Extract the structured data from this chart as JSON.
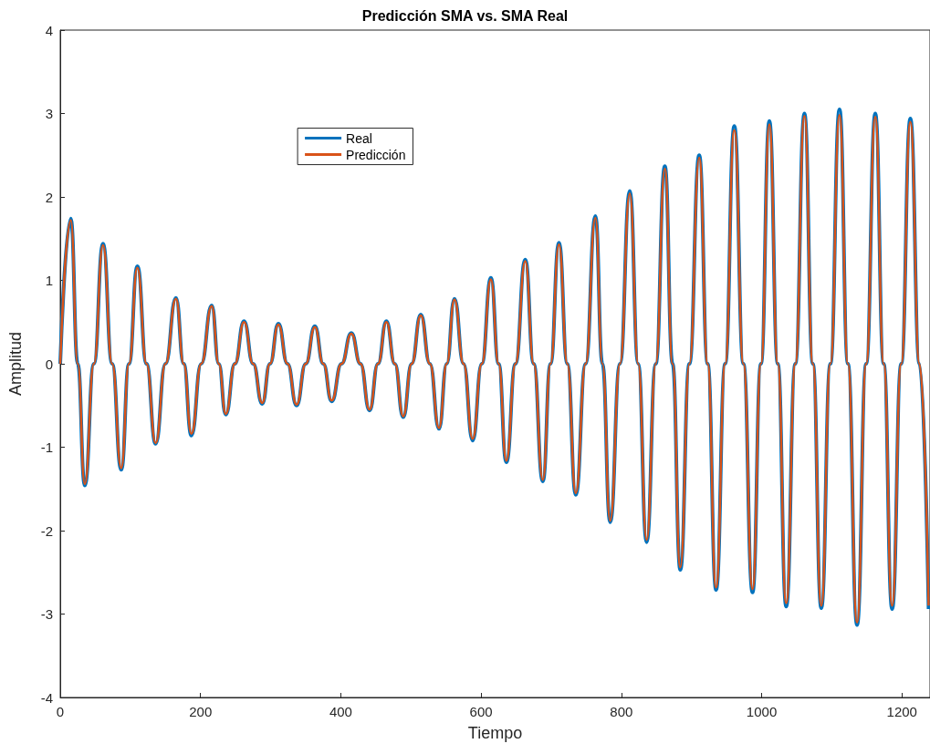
{
  "chart_data": {
    "type": "line",
    "title": "Predicción SMA vs. SMA Real",
    "xlabel": "Tiempo",
    "ylabel": "Amplitud",
    "x": [
      0,
      15,
      25,
      35,
      48,
      61,
      74,
      87,
      98,
      110,
      123,
      136,
      150,
      165,
      176,
      187,
      201,
      216,
      226,
      236,
      249,
      262,
      275,
      288,
      299,
      311,
      324,
      337,
      350,
      363,
      375,
      387,
      401,
      415,
      428,
      441,
      453,
      465,
      477,
      489,
      501,
      514,
      527,
      540,
      551,
      562,
      575,
      588,
      601,
      614,
      625,
      636,
      649,
      663,
      675,
      688,
      699,
      711,
      723,
      735,
      749,
      763,
      773,
      784,
      798,
      812,
      824,
      836,
      849,
      862,
      873,
      884,
      897,
      911,
      923,
      935,
      948,
      961,
      974,
      987,
      999,
      1011,
      1023,
      1035,
      1048,
      1061,
      1073,
      1085,
      1098,
      1111,
      1123,
      1136,
      1149,
      1162,
      1174,
      1186,
      1199,
      1212,
      1225,
      1238
    ],
    "series": [
      {
        "name": "Real",
        "color": "#0072bd",
        "values": [
          0,
          1.74,
          0,
          -1.46,
          0,
          1.44,
          0,
          -1.27,
          0,
          1.17,
          0,
          -0.96,
          0,
          0.79,
          0,
          -0.86,
          0,
          0.7,
          0,
          -0.61,
          0,
          0.51,
          0,
          -0.48,
          0,
          0.48,
          0,
          -0.5,
          0,
          0.45,
          0,
          -0.45,
          0,
          0.37,
          0,
          -0.56,
          0,
          0.51,
          0,
          -0.64,
          0,
          0.59,
          0,
          -0.78,
          0,
          0.78,
          0,
          -0.92,
          0,
          1.03,
          0,
          -1.18,
          0,
          1.25,
          0,
          -1.41,
          0,
          1.45,
          0,
          -1.57,
          0,
          1.77,
          0,
          -1.9,
          0,
          2.07,
          0,
          -2.14,
          0,
          2.37,
          0,
          -2.47,
          0,
          2.5,
          0,
          -2.71,
          0,
          2.85,
          0,
          -2.74,
          0,
          2.91,
          0,
          -2.91,
          0,
          3.0,
          0,
          -2.93,
          0,
          3.05,
          0,
          -3.13,
          0,
          3.0,
          0,
          -2.94,
          0,
          2.94,
          0,
          -2.94
        ]
      },
      {
        "name": "Predicción",
        "color": "#d95319",
        "values": [
          0,
          1.72,
          0,
          -1.44,
          0,
          1.42,
          0,
          -1.25,
          0,
          1.15,
          0,
          -0.95,
          0,
          0.78,
          0,
          -0.84,
          0,
          0.69,
          0,
          -0.6,
          0,
          0.5,
          0,
          -0.47,
          0,
          0.47,
          0,
          -0.49,
          0,
          0.44,
          0,
          -0.44,
          0,
          0.36,
          0,
          -0.55,
          0,
          0.5,
          0,
          -0.63,
          0,
          0.58,
          0,
          -0.77,
          0,
          0.77,
          0,
          -0.9,
          0,
          1.01,
          0,
          -1.16,
          0,
          1.23,
          0,
          -1.39,
          0,
          1.43,
          0,
          -1.55,
          0,
          1.75,
          0,
          -1.88,
          0,
          2.04,
          0,
          -2.11,
          0,
          2.34,
          0,
          -2.44,
          0,
          2.47,
          0,
          -2.68,
          0,
          2.8,
          0,
          -2.7,
          0,
          2.87,
          0,
          -2.87,
          0,
          2.97,
          0,
          -2.9,
          0,
          2.98,
          0,
          -3.1,
          0,
          2.96,
          0,
          -2.9,
          0,
          2.9,
          0,
          -2.9
        ]
      }
    ],
    "xlim": [
      0,
      1240
    ],
    "xticks": [
      0,
      200,
      400,
      600,
      800,
      1000,
      1200
    ],
    "ylim": [
      -4,
      4
    ],
    "yticks": [
      -4,
      -3,
      -2,
      -1,
      0,
      1,
      2,
      3,
      4
    ],
    "grid": false,
    "legend": "top left",
    "marker": "none",
    "line_style": "solid"
  }
}
